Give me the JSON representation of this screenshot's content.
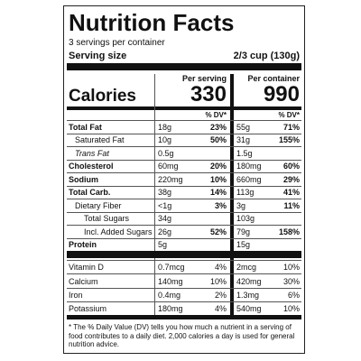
{
  "header": {
    "title": "Nutrition Facts",
    "servings": "3 servings per container",
    "serving_size_label": "Serving size",
    "serving_size_value": "2/3 cup (130g)"
  },
  "columns": {
    "per_serving": "Per serving",
    "per_container": "Per container"
  },
  "calories": {
    "label": "Calories",
    "serving": "330",
    "container": "990"
  },
  "dv_header": [
    "% DV*",
    "% DV*"
  ],
  "nutrients": [
    {
      "name": "Total Fat",
      "serving": "18g",
      "serving_dv": "23%",
      "container": "55g",
      "container_dv": "71%"
    },
    {
      "name": "Saturated Fat",
      "serving": "10g",
      "serving_dv": "50%",
      "container": "31g",
      "container_dv": "155%"
    },
    {
      "name": "Trans Fat",
      "serving": "0.5g",
      "serving_dv": null,
      "container": "1.5g",
      "container_dv": null
    },
    {
      "name": "Cholesterol",
      "serving": "60mg",
      "serving_dv": "20%",
      "container": "180mg",
      "container_dv": "60%"
    },
    {
      "name": "Sodium",
      "serving": "220mg",
      "serving_dv": "10%",
      "container": "660mg",
      "container_dv": "29%"
    },
    {
      "name": "Total Carb.",
      "serving": "38g",
      "serving_dv": "14%",
      "container": "113g",
      "container_dv": "41%"
    },
    {
      "name": "Dietary Fiber",
      "serving": "<1g",
      "serving_dv": "3%",
      "container": "3g",
      "container_dv": "11%"
    },
    {
      "name": "Total Sugars",
      "serving": "34g",
      "serving_dv": null,
      "container": "103g",
      "container_dv": null
    },
    {
      "name": "Incl. Added Sugars",
      "serving": "26g",
      "serving_dv": "52%",
      "container": "79g",
      "container_dv": "158%"
    },
    {
      "name": "Protein",
      "serving": "5g",
      "serving_dv": null,
      "container": "15g",
      "container_dv": null
    }
  ],
  "vitamins": [
    {
      "name": "Vitamin D",
      "serving": "0.7mcg",
      "serving_dv": "4%",
      "container": "2mcg",
      "container_dv": "10%"
    },
    {
      "name": "Calcium",
      "serving": "140mg",
      "serving_dv": "10%",
      "container": "420mg",
      "container_dv": "30%"
    },
    {
      "name": "Iron",
      "serving": "0.4mg",
      "serving_dv": "2%",
      "container": "1.3mg",
      "container_dv": "6%"
    },
    {
      "name": "Potassium",
      "serving": "180mg",
      "serving_dv": "4%",
      "container": "540mg",
      "container_dv": "10%"
    }
  ],
  "footnote": "* The % Daily Value (DV) tells you how much a nutrient in a serving of food contributes to a daily diet. 2,000 calories a day is used for general nutrition advice."
}
